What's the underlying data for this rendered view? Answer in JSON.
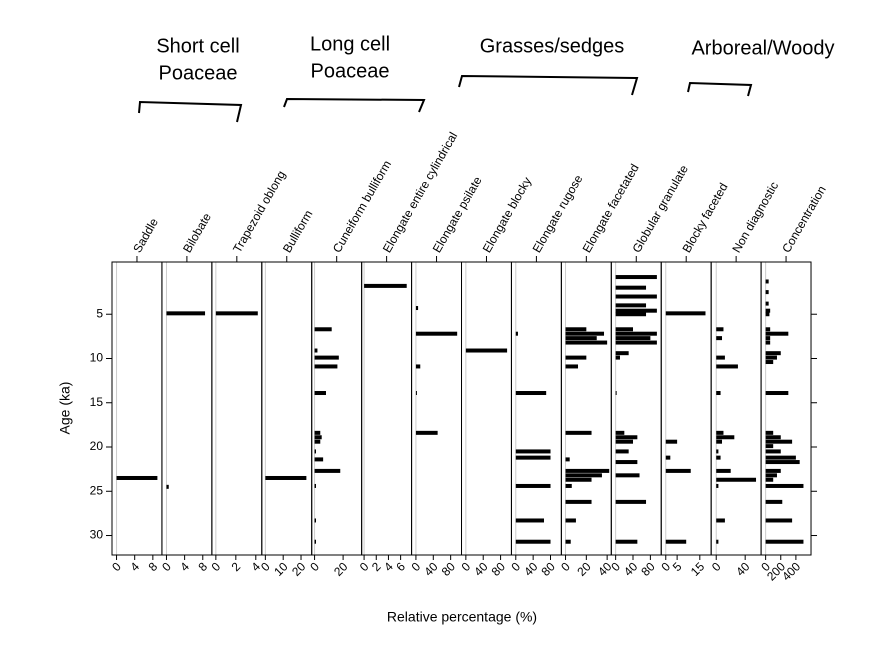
{
  "chart_data": {
    "type": "bar",
    "orientation": "horizontal",
    "color": "#000000",
    "y_label": "Age (ka)",
    "x_label": "Relative percentage (%)",
    "ylim": [
      -0.9,
      32.2
    ],
    "yticks": [
      5,
      10,
      15,
      20,
      25,
      30
    ],
    "groups": [
      {
        "lines": [
          "Short cell",
          "Poaceae"
        ]
      },
      {
        "lines": [
          "Long cell",
          "Poaceae"
        ]
      },
      {
        "lines": [
          "Grasses/sedges"
        ]
      },
      {
        "lines": [
          "Arboreal/Woody"
        ]
      }
    ],
    "panels": [
      {
        "name": "Saddle",
        "xlim": [
          -1,
          10
        ],
        "xticks": [
          0,
          4,
          8
        ],
        "y": [
          23.5
        ],
        "values": [
          9
        ]
      },
      {
        "name": "Bilobate",
        "xlim": [
          -1,
          10
        ],
        "xticks": [
          0,
          4,
          8
        ],
        "y": [
          4.9,
          24.5
        ],
        "values": [
          8.5,
          0.5
        ]
      },
      {
        "name": "Trapezoid oblong",
        "xlim": [
          -0.4,
          4.6
        ],
        "xticks": [
          0,
          2,
          4
        ],
        "y": [
          4.9
        ],
        "values": [
          4.2
        ]
      },
      {
        "name": "Bulliform",
        "xlim": [
          -2,
          26
        ],
        "xticks": [
          0,
          10,
          20
        ],
        "y": [
          23.5
        ],
        "values": [
          23
        ]
      },
      {
        "name": "Cuneiform bulliform",
        "xlim": [
          -2,
          33
        ],
        "xticks": [
          0,
          20
        ],
        "y": [
          6.7,
          9.1,
          9.9,
          10.9,
          13.9,
          18.4,
          18.9,
          19.4,
          20.5,
          21.4,
          22.7,
          24.4,
          28.3,
          30.7
        ],
        "values": [
          12,
          2,
          17,
          16,
          8,
          4,
          5,
          4,
          1,
          6,
          18,
          1,
          1,
          1
        ]
      },
      {
        "name": "Elongate entire cylindrical",
        "xlim": [
          -0.4,
          7.8
        ],
        "xticks": [
          0,
          2,
          4,
          6
        ],
        "y": [
          1.8
        ],
        "values": [
          7
        ]
      },
      {
        "name": "Elongate psilate",
        "xlim": [
          -10,
          105
        ],
        "xticks": [
          0,
          40,
          80
        ],
        "y": [
          4.3,
          7.2,
          10.9,
          13.9,
          18.4
        ],
        "values": [
          5,
          95,
          10,
          1,
          50
        ]
      },
      {
        "name": "Elongate blocky",
        "xlim": [
          -10,
          105
        ],
        "xticks": [
          0,
          40,
          80
        ],
        "y": [
          9.1
        ],
        "values": [
          95
        ]
      },
      {
        "name": "Elongate rugose",
        "xlim": [
          -10,
          105
        ],
        "xticks": [
          0,
          40,
          80
        ],
        "y": [
          7.2,
          13.9,
          20.5,
          21.2,
          24.4,
          28.3,
          30.7
        ],
        "values": [
          5,
          70,
          80,
          80,
          80,
          65,
          80
        ]
      },
      {
        "name": "Elongate facetated",
        "xlim": [
          -4,
          44
        ],
        "xticks": [
          0,
          20,
          40
        ],
        "y": [
          6.7,
          7.2,
          7.7,
          8.2,
          9.9,
          10.9,
          18.4,
          21.4,
          22.7,
          23.2,
          23.7,
          24.4,
          26.2,
          28.3,
          30.7
        ],
        "values": [
          20,
          37,
          30,
          40,
          20,
          12,
          25,
          4,
          42,
          35,
          25,
          6,
          25,
          10,
          5
        ]
      },
      {
        "name": "Globular granulate",
        "xlim": [
          -10,
          105
        ],
        "xticks": [
          0,
          40,
          80
        ],
        "y": [
          0.8,
          2,
          3,
          4,
          4.6,
          5,
          6.7,
          7.2,
          7.7,
          8.2,
          9.4,
          9.9,
          13.9,
          18.4,
          18.9,
          19.4,
          20.5,
          21.7,
          23.2,
          26.2,
          30.7
        ],
        "values": [
          95,
          70,
          95,
          70,
          95,
          70,
          40,
          95,
          80,
          95,
          30,
          10,
          2,
          20,
          50,
          40,
          30,
          50,
          55,
          70,
          50
        ]
      },
      {
        "name": "Blocky faceted",
        "xlim": [
          -2,
          20
        ],
        "xticks": [
          0,
          5,
          15
        ],
        "y": [
          4.9,
          19.4,
          21.2,
          22.7,
          30.7
        ],
        "values": [
          17.5,
          5,
          2,
          11,
          9
        ]
      },
      {
        "name": "Non diagnostic",
        "xlim": [
          -7,
          62
        ],
        "xticks": [
          0,
          40
        ],
        "y": [
          6.7,
          7.7,
          9.9,
          10.9,
          13.9,
          18.4,
          18.9,
          19.4,
          20.5,
          21.2,
          22.7,
          23.7,
          24.4,
          28.3,
          30.7
        ],
        "values": [
          10,
          8,
          12,
          30,
          6,
          10,
          25,
          8,
          3,
          6,
          20,
          55,
          3,
          12,
          3
        ]
      },
      {
        "name": "Concentration",
        "xlim": [
          -60,
          600
        ],
        "xticks": [
          0,
          200,
          400
        ],
        "y": [
          1.3,
          2.5,
          3.8,
          4.6,
          5,
          6.7,
          7.2,
          7.7,
          8.2,
          9.4,
          9.9,
          10.4,
          13.9,
          18.4,
          18.9,
          19.4,
          19.9,
          20.5,
          21.2,
          21.7,
          22.7,
          23.2,
          23.7,
          24.4,
          26.2,
          28.3,
          30.7
        ],
        "values": [
          40,
          40,
          40,
          60,
          50,
          60,
          300,
          60,
          60,
          200,
          150,
          100,
          300,
          100,
          200,
          350,
          100,
          200,
          400,
          450,
          200,
          150,
          100,
          500,
          220,
          350,
          500
        ]
      }
    ]
  }
}
